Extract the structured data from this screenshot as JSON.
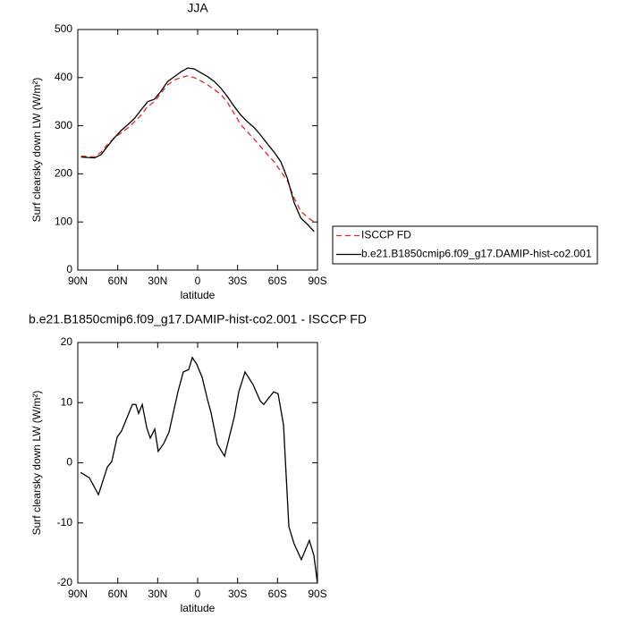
{
  "chart_data": [
    {
      "type": "line",
      "title": "JJA",
      "x_label": "latitude",
      "y_label": "Surf clearsky down LW (W/m²)",
      "xlim": [
        90,
        -90
      ],
      "xticks": [
        {
          "value": 90,
          "label": "90N"
        },
        {
          "value": 60,
          "label": "60N"
        },
        {
          "value": 30,
          "label": "30N"
        },
        0,
        {
          "value": -30,
          "label": "30S"
        },
        {
          "value": -60,
          "label": "60S"
        },
        {
          "value": -90,
          "label": "90S"
        }
      ],
      "ylim": [
        0,
        500
      ],
      "yticks": [
        0,
        100,
        200,
        300,
        400,
        500
      ],
      "grid": false,
      "legend": "outside-right",
      "x": [
        87.5,
        82.5,
        77.5,
        72.5,
        67.5,
        62.5,
        57.5,
        52.5,
        47.5,
        42.5,
        37.5,
        32.5,
        27.5,
        22.5,
        17.5,
        12.5,
        7.5,
        2.5,
        -2.5,
        -7.5,
        -12.5,
        -17.5,
        -22.5,
        -27.5,
        -32.5,
        -37.5,
        -42.5,
        -47.5,
        -52.5,
        -57.5,
        -62.5,
        -67.5,
        -72.5,
        -77.5,
        -82.5,
        -87.5
      ],
      "series": [
        {
          "name": "ISCCP FD",
          "color": "#e8241f",
          "line_style": "dashed",
          "values": [
            237,
            236,
            235,
            245,
            262,
            275,
            285,
            295,
            308,
            322,
            340,
            350,
            368,
            385,
            395,
            400,
            404,
            400,
            393,
            385,
            375,
            365,
            348,
            325,
            302,
            287,
            272,
            256,
            240,
            225,
            205,
            185,
            150,
            122,
            110,
            100
          ]
        },
        {
          "name": "b.e21.B1850cmip6.f09_g17.DAMIP-hist-co2.001",
          "color": "#000000",
          "line_style": "solid",
          "values": [
            235,
            234,
            233,
            240,
            258,
            275,
            290,
            302,
            315,
            333,
            350,
            355,
            372,
            392,
            402,
            412,
            420,
            418,
            410,
            402,
            392,
            378,
            360,
            340,
            322,
            308,
            296,
            280,
            262,
            245,
            225,
            190,
            140,
            108,
            95,
            80
          ]
        }
      ]
    },
    {
      "type": "line",
      "title": "b.e21.B1850cmip6.f09_g17.DAMIP-hist-co2.001 - ISCCP FD",
      "x_label": "latitude",
      "y_label": "Surf clearsky down LW (W/m²)",
      "xlim": [
        90,
        -90
      ],
      "xticks": [
        {
          "value": 90,
          "label": "90N"
        },
        {
          "value": 60,
          "label": "60N"
        },
        {
          "value": 30,
          "label": "30N"
        },
        0,
        {
          "value": -30,
          "label": "30S"
        },
        {
          "value": -60,
          "label": "60S"
        },
        {
          "value": -90,
          "label": "90S"
        }
      ],
      "ylim": [
        -20,
        20
      ],
      "yticks": [
        -20,
        -10,
        0,
        10,
        20
      ],
      "grid": false,
      "x": [
        87.9,
        81.3,
        74.5,
        67.8,
        64.5,
        60.4,
        57.1,
        49,
        46.4,
        44.3,
        41.6,
        38.3,
        35.6,
        32.2,
        29.6,
        25.5,
        21.5,
        14.8,
        10.8,
        6.7,
        4,
        0.7,
        -3.4,
        -7.4,
        -10.1,
        -14.8,
        -20.2,
        -27.5,
        -30.9,
        -35.6,
        -41.6,
        -47,
        -49.7,
        -53.1,
        -57.1,
        -60.4,
        -64.5,
        -68.5,
        -72.5,
        -77.9,
        -83.9,
        -87.3,
        -90
      ],
      "series": [
        {
          "color": "#000000",
          "line_style": "solid",
          "values": [
            -1.6,
            -2.5,
            -5.3,
            -0.7,
            0.2,
            4.3,
            5.3,
            9.7,
            9.7,
            8.2,
            9.7,
            5.9,
            4.1,
            5.6,
            1.9,
            3.2,
            5.1,
            11.8,
            15.1,
            15.5,
            17.5,
            16.4,
            14.2,
            10.5,
            8.3,
            3.1,
            1.1,
            7.6,
            11.8,
            15.1,
            13,
            10.3,
            9.7,
            10.7,
            11.8,
            11.5,
            6.3,
            -10.6,
            -13.5,
            -16.1,
            -12.9,
            -15.4,
            -20
          ]
        }
      ]
    }
  ]
}
